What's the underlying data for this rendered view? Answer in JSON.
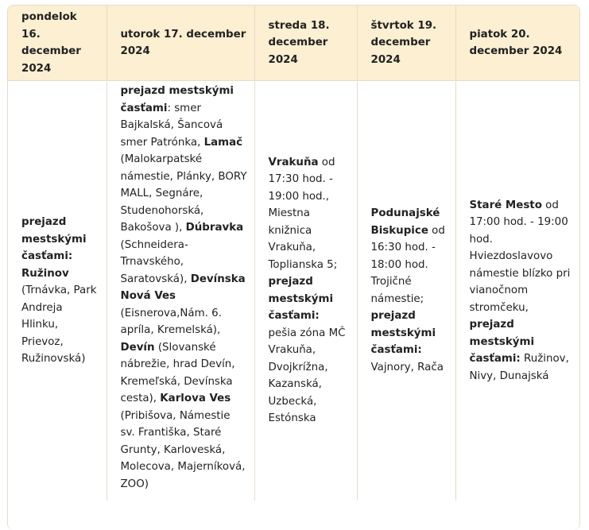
{
  "headers": [
    "pondelok 16. december 2024",
    "utorok 17. december 2024",
    "streda 18. december 2024",
    "štvrtok 19. december 2024",
    "piatok 20. december 2024"
  ],
  "cells": [
    [
      {
        "text": "prejazd mestskými časťami: Ružinov",
        "bold": true
      },
      {
        "text": " (Trnávka, Park Andreja Hlinku, Prievoz, Ružinovská)",
        "bold": false
      }
    ],
    [
      {
        "text": "prejazd mestskými časťami",
        "bold": true
      },
      {
        "text": ": smer Bajkalská, Šancová smer Patrónka, ",
        "bold": false
      },
      {
        "text": "Lamač",
        "bold": true
      },
      {
        "text": " (Malokarpatské námestie, Plánky, BORY MALL, Segnáre, Studenohorská, Bakošova ), ",
        "bold": false
      },
      {
        "text": "Dúbravka",
        "bold": true
      },
      {
        "text": " (Schneidera-Trnavského, Saratovská), ",
        "bold": false
      },
      {
        "text": "Devínska Nová Ves",
        "bold": true
      },
      {
        "text": " (Eisnerova,Nám. 6. apríla, Kremelská), ",
        "bold": false
      },
      {
        "text": "Devín",
        "bold": true
      },
      {
        "text": " (Slovanské nábrežie, hrad Devín, Kremeľská, Devínska cesta), ",
        "bold": false
      },
      {
        "text": "Karlova Ves",
        "bold": true
      },
      {
        "text": " (Pribišova, Námestie sv. Františka, Staré Grunty, Karloveská, Molecova, Majerníková, ZOO)",
        "bold": false
      }
    ],
    [
      {
        "text": "Vrakuňa",
        "bold": true
      },
      {
        "text": " od 17:30 hod. - 19:00 hod., Miestna knižnica Vrakuňa, Toplianska 5; ",
        "bold": false
      },
      {
        "text": "prejazd mestskými časťami:",
        "bold": true
      },
      {
        "text": " pešia zóna MČ Vrakuňa, Dvojkrížna, Kazanská, Uzbecká, Estónska",
        "bold": false
      }
    ],
    [
      {
        "text": "Podunajské Biskupice",
        "bold": true
      },
      {
        "text": " od 16:30 hod. - 18:00 hod. Trojičné námestie; ",
        "bold": false
      },
      {
        "text": "prejazd mestskými časťami:",
        "bold": true
      },
      {
        "text": " Vajnory, Rača",
        "bold": false
      }
    ],
    [
      {
        "text": "Staré Mesto",
        "bold": true
      },
      {
        "text": " od 17:00 hod. - 19:00 hod. Hviezdoslavovo námestie blízko pri vianočnom stromčeku, ",
        "bold": false
      },
      {
        "text": "prejazd mestskými časťami:",
        "bold": true
      },
      {
        "text": " Ružinov, Nivy, Dunajská",
        "bold": false
      }
    ]
  ]
}
